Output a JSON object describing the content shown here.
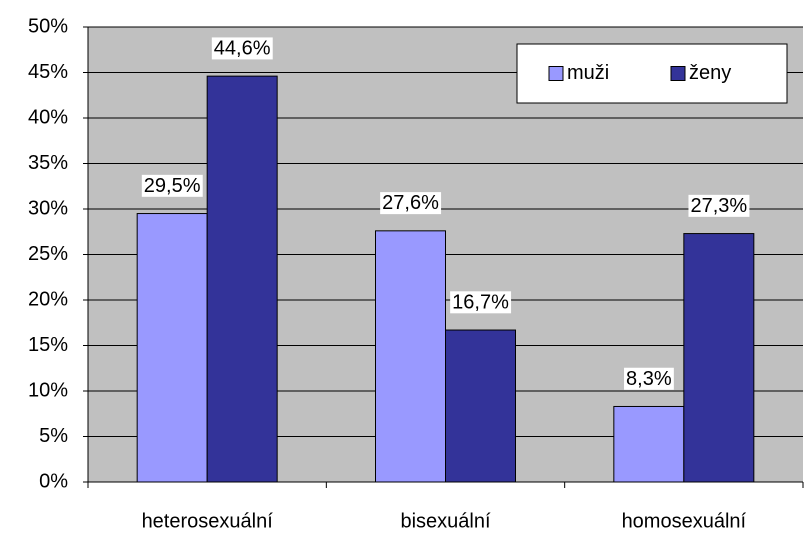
{
  "chart_data": {
    "type": "bar",
    "categories": [
      "heterosexuální",
      "bisexuální",
      "homosexuální"
    ],
    "series": [
      {
        "name": "muži",
        "color": "#9999ff",
        "values": [
          29.5,
          27.6,
          8.3
        ],
        "value_labels": [
          "29,5%",
          "27,6%",
          "8,3%"
        ]
      },
      {
        "name": "ženy",
        "color": "#333399",
        "values": [
          44.6,
          16.7,
          27.3
        ],
        "value_labels": [
          "44,6%",
          "16,7%",
          "27,3%"
        ]
      }
    ],
    "ylim": [
      0,
      50
    ],
    "yticks": [
      {
        "value": 0,
        "label": "0%"
      },
      {
        "value": 5,
        "label": "5%"
      },
      {
        "value": 10,
        "label": "10%"
      },
      {
        "value": 15,
        "label": "15%"
      },
      {
        "value": 20,
        "label": "20%"
      },
      {
        "value": 25,
        "label": "25%"
      },
      {
        "value": 30,
        "label": "30%"
      },
      {
        "value": 35,
        "label": "35%"
      },
      {
        "value": 40,
        "label": "40%"
      },
      {
        "value": 45,
        "label": "45%"
      },
      {
        "value": 50,
        "label": "50%"
      }
    ],
    "grid": true,
    "legend": "upper right",
    "plot_background": "#c0c0c0"
  }
}
